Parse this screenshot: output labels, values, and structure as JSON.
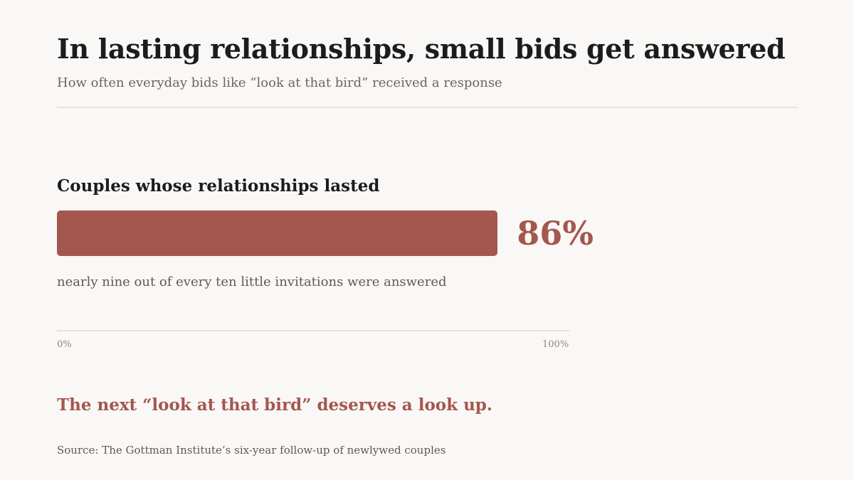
{
  "header": {
    "title": "In lasting relationships, small bids get answered",
    "subtitle": "How often everyday bids like “look at that bird” received a response"
  },
  "chart_data": {
    "type": "bar",
    "orientation": "horizontal",
    "categories": [
      "Couples whose relationships lasted"
    ],
    "values": [
      86
    ],
    "value_labels": [
      "86%"
    ],
    "xlim": [
      0,
      100
    ],
    "tick_labels": [
      "0%",
      "100%"
    ],
    "annotations": [
      "nearly nine out of every ten little invitations were answered"
    ],
    "grid": false,
    "bar_color": "#a4574e"
  },
  "takeaway": "The next “look at that bird” deserves a look up.",
  "source": "Source: The Gottman Institute’s six-year follow-up of newlywed couples",
  "colors": {
    "accent": "#a4574e",
    "background": "#faf8f6"
  }
}
